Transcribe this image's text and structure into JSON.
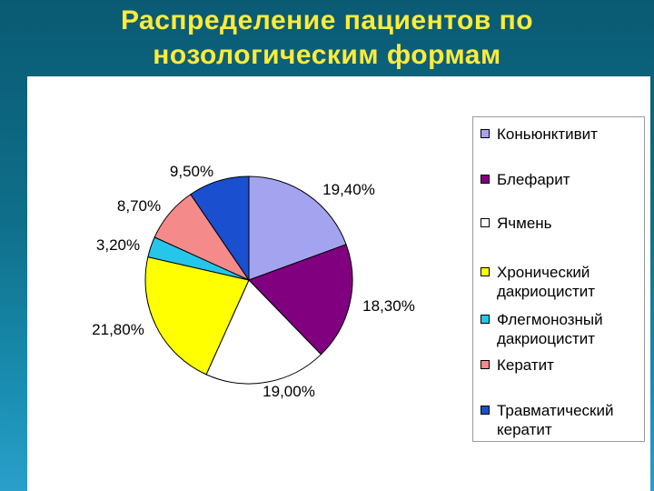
{
  "title": {
    "line1": "Распределение пациентов по",
    "line2": "нозологическим формам"
  },
  "chart_data": {
    "type": "pie",
    "categories": [
      "Коньюнктивит",
      "Блефарит",
      "Ячмень",
      "Хронический дакриоцистит",
      "Флегмонозный дакриоцистит",
      "Кератит",
      "Травматический кератит"
    ],
    "legend_lines": [
      [
        "Коньюнктивит"
      ],
      [
        "Блефарит"
      ],
      [
        "Ячмень"
      ],
      [
        "Хронический",
        "дакриоцистит"
      ],
      [
        "Флегмонозный",
        "дакриоцистит"
      ],
      [
        "Кератит"
      ],
      [
        "Травматический",
        "кератит"
      ]
    ],
    "values": [
      19.4,
      18.3,
      19.0,
      21.8,
      3.2,
      8.7,
      9.5
    ],
    "labels": [
      "19,40%",
      "18,30%",
      "19,00%",
      "21,80%",
      "3,20%",
      "8,70%",
      "9,50%"
    ],
    "colors": [
      "#a3a3f0",
      "#800080",
      "#ffffff",
      "#ffff00",
      "#26c6ea",
      "#f58a8a",
      "#1a4fcf"
    ],
    "start_angle_deg": 0,
    "direction": "clockwise",
    "legend_position": "right"
  }
}
